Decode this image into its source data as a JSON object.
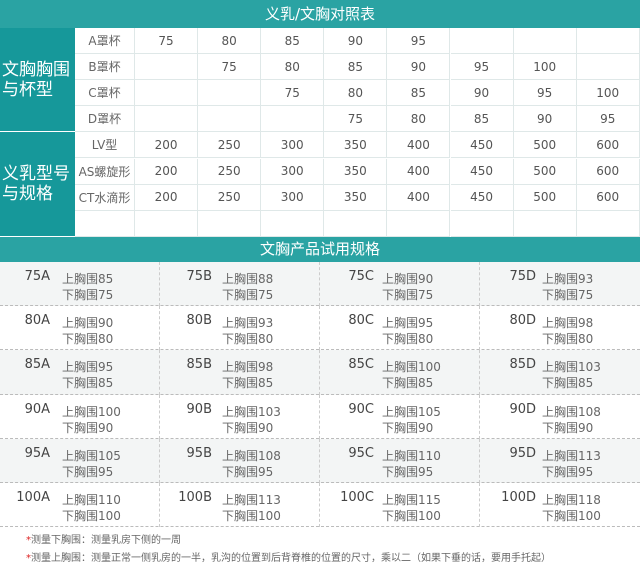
{
  "header": {
    "title": "义乳/文胸对照表"
  },
  "comparison": {
    "groups": [
      {
        "label": "文胸胸围与杯型",
        "rows": [
          {
            "label": "A罩杯",
            "values": [
              75,
              80,
              85,
              90,
              95,
              null,
              null,
              null
            ]
          },
          {
            "label": "B罩杯",
            "values": [
              null,
              75,
              80,
              85,
              90,
              95,
              100,
              null
            ]
          },
          {
            "label": "C罩杯",
            "values": [
              null,
              null,
              75,
              80,
              85,
              90,
              95,
              100
            ]
          },
          {
            "label": "D罩杯",
            "values": [
              null,
              null,
              null,
              75,
              80,
              85,
              90,
              95
            ]
          }
        ]
      },
      {
        "label": "义乳型号与规格",
        "rows": [
          {
            "label": "LV型",
            "values": [
              200,
              250,
              300,
              350,
              400,
              450,
              500,
              600
            ]
          },
          {
            "label": "AS螺旋形",
            "values": [
              200,
              250,
              300,
              350,
              400,
              450,
              500,
              600
            ]
          },
          {
            "label": "CT水滴形",
            "values": [
              200,
              250,
              300,
              350,
              400,
              450,
              500,
              600
            ]
          }
        ]
      }
    ]
  },
  "trial": {
    "title": "文胸产品试用规格",
    "rows": [
      [
        {
          "size": "75A",
          "upper": "上胸围85",
          "lower": "下胸围75"
        },
        {
          "size": "75B",
          "upper": "上胸围88",
          "lower": "下胸围75"
        },
        {
          "size": "75C",
          "upper": "上胸围90",
          "lower": "下胸围75"
        },
        {
          "size": "75D",
          "upper": "上胸围93",
          "lower": "下胸围75"
        }
      ],
      [
        {
          "size": "80A",
          "upper": "上胸围90",
          "lower": "下胸围80"
        },
        {
          "size": "80B",
          "upper": "上胸围93",
          "lower": "下胸围80"
        },
        {
          "size": "80C",
          "upper": "上胸围95",
          "lower": "下胸围80"
        },
        {
          "size": "80D",
          "upper": "上胸围98",
          "lower": "下胸围80"
        }
      ],
      [
        {
          "size": "85A",
          "upper": "上胸围95",
          "lower": "下胸围85"
        },
        {
          "size": "85B",
          "upper": "上胸围98",
          "lower": "下胸围85"
        },
        {
          "size": "85C",
          "upper": "上胸围100",
          "lower": "下胸围85"
        },
        {
          "size": "85D",
          "upper": "上胸围103",
          "lower": "下胸围85"
        }
      ],
      [
        {
          "size": "90A",
          "upper": "上胸围100",
          "lower": "下胸围90"
        },
        {
          "size": "90B",
          "upper": "上胸围103",
          "lower": "下胸围90"
        },
        {
          "size": "90C",
          "upper": "上胸围105",
          "lower": "下胸围90"
        },
        {
          "size": "90D",
          "upper": "上胸围108",
          "lower": "下胸围90"
        }
      ],
      [
        {
          "size": "95A",
          "upper": "上胸围105",
          "lower": "下胸围95"
        },
        {
          "size": "95B",
          "upper": "上胸围108",
          "lower": "下胸围95"
        },
        {
          "size": "95C",
          "upper": "上胸围110",
          "lower": "下胸围95"
        },
        {
          "size": "95D",
          "upper": "上胸围113",
          "lower": "下胸围95"
        }
      ],
      [
        {
          "size": "100A",
          "upper": "上胸围110",
          "lower": "下胸围100"
        },
        {
          "size": "100B",
          "upper": "上胸围113",
          "lower": "下胸围100"
        },
        {
          "size": "100C",
          "upper": "上胸围115",
          "lower": "下胸围100"
        },
        {
          "size": "100D",
          "upper": "上胸围118",
          "lower": "下胸围100"
        }
      ]
    ]
  },
  "notes": [
    {
      "mark": "*",
      "text": "测量下胸围：测量乳房下侧的一周"
    },
    {
      "mark": "*",
      "text": "测量上胸围：测量正常一侧乳房的一半，乳沟的位置到后背脊椎的位置的尺寸，乘以二（如果下垂的话，要用手托起）"
    }
  ]
}
